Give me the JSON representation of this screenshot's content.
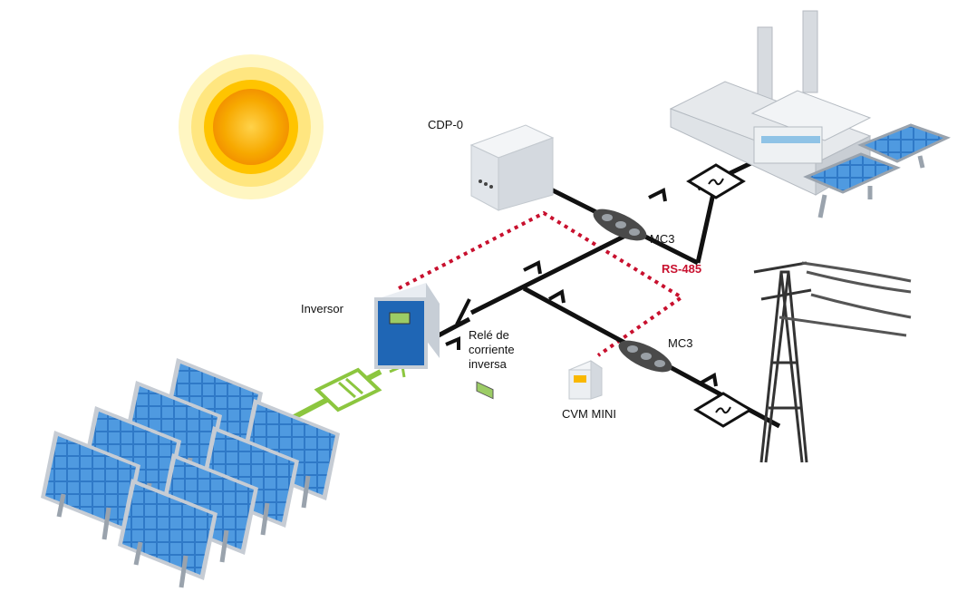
{
  "labels": {
    "cdp": "CDP-0",
    "mc3_top": "MC3",
    "rs485": "RS-485",
    "inverter": "Inversor",
    "relay_line1": "Relé de",
    "relay_line2": "corriente",
    "relay_line3": "inversa",
    "mc3_bottom": "MC3",
    "cvm": "CVM MINI"
  },
  "colors": {
    "line": "#111111",
    "rs485": "#c8102e",
    "pv_link": "#8cc63f",
    "panel_blue": "#2f79c7",
    "sun": "#f9b800"
  }
}
